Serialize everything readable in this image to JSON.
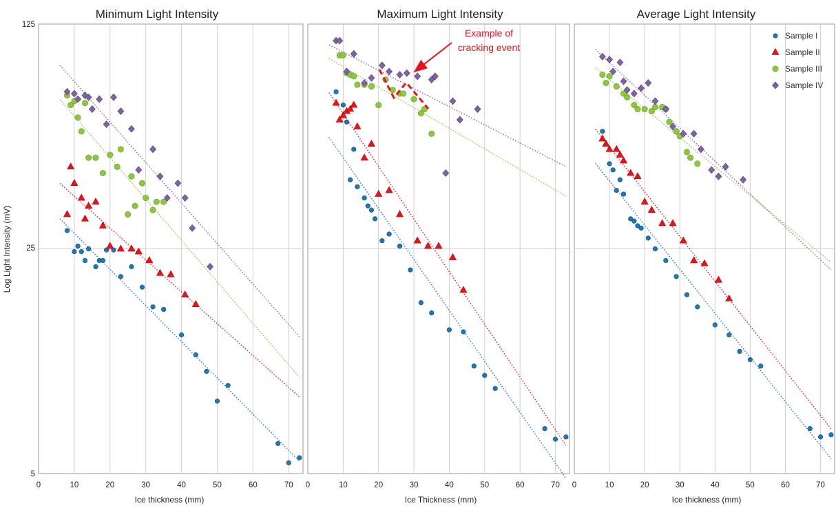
{
  "figure": {
    "ylabel": "Log Light Intensity (mV)",
    "y_tick_labels": [
      "125",
      "25",
      "5"
    ]
  },
  "legend": {
    "position": "top-right",
    "entries": [
      {
        "name": "Sample I",
        "color": "#1f77b4",
        "marker": "circle"
      },
      {
        "name": "Sample II",
        "color": "#e8141b",
        "marker": "triangle"
      },
      {
        "name": "Sample III",
        "color": "#8dc63f",
        "marker": "circle"
      },
      {
        "name": "Sample IV",
        "color": "#8064a2",
        "marker": "diamond"
      }
    ]
  },
  "annotation": {
    "line1": "Example of",
    "line2": "cracking event",
    "color": "#e8141b"
  },
  "chart_data": [
    {
      "type": "scatter",
      "title": "Minimum Light Intensity",
      "xlabel": "Ice thickness (mm)",
      "ylabel": "Log Light Intensity (mV)",
      "xlim": [
        0,
        74
      ],
      "x_ticks": [
        0,
        10,
        20,
        30,
        40,
        50,
        60,
        70
      ],
      "ylim": [
        5,
        125
      ],
      "y_scale": "log",
      "grid": true,
      "series": [
        {
          "name": "Sample I",
          "x": [
            8,
            10,
            11,
            12,
            13,
            14,
            16,
            17,
            18,
            19,
            21,
            23,
            26,
            29,
            32,
            35,
            40,
            44,
            47,
            53,
            50,
            67,
            70,
            73
          ],
          "y": [
            28.5,
            24.5,
            25.5,
            24.5,
            23,
            25,
            22,
            23,
            23,
            24.8,
            24.8,
            20.5,
            22,
            19,
            16.5,
            16.2,
            13.5,
            11.7,
            10.4,
            9.4,
            8.4,
            6.2,
            5.4,
            5.6
          ]
        },
        {
          "name": "Sample II",
          "x": [
            8,
            9,
            10,
            12,
            13,
            14,
            16,
            18,
            20,
            23,
            26,
            28,
            31,
            34,
            37,
            41,
            44
          ],
          "y": [
            32,
            45,
            40,
            36,
            31,
            34,
            35,
            29.5,
            25.5,
            25,
            25,
            24.5,
            23,
            21,
            20.8,
            18,
            16.8
          ]
        },
        {
          "name": "Sample III",
          "x": [
            8,
            9,
            10,
            11,
            12,
            13,
            14,
            16,
            18,
            20,
            22,
            23,
            25,
            26,
            27,
            29,
            30,
            32,
            33,
            35
          ],
          "y": [
            75,
            70,
            72,
            64,
            58,
            71,
            48,
            48,
            43,
            49,
            45,
            51,
            32,
            42,
            34,
            40,
            36,
            33,
            35,
            35
          ]
        },
        {
          "name": "Sample IV",
          "x": [
            8,
            10,
            11,
            13,
            14,
            15,
            17,
            19,
            21,
            23,
            26,
            28,
            32,
            34,
            36,
            39,
            41,
            43,
            48
          ],
          "y": [
            77,
            76,
            73,
            75,
            74,
            68,
            73,
            61,
            74,
            67,
            59,
            44,
            51,
            42,
            36,
            40,
            36,
            29,
            22
          ]
        }
      ]
    },
    {
      "type": "scatter",
      "title": "Maximum Light Intensity",
      "xlabel": "Ice Thickness (mm)",
      "xlim": [
        0,
        74
      ],
      "x_ticks": [
        0,
        10,
        20,
        30,
        40,
        50,
        60,
        70
      ],
      "ylim": [
        5,
        125
      ],
      "y_scale": "log",
      "grid": true,
      "series": [
        {
          "name": "Sample I",
          "x": [
            8,
            10,
            11,
            12,
            13,
            14,
            16,
            17,
            18,
            19,
            21,
            23,
            26,
            29,
            32,
            35,
            40,
            44,
            47,
            53,
            50,
            67,
            70,
            73
          ],
          "y": [
            77,
            70,
            62,
            41,
            51,
            39,
            36,
            34,
            33,
            31,
            26.5,
            27.8,
            25.5,
            21.5,
            17,
            15.8,
            14,
            13.8,
            10.8,
            9.2,
            10.1,
            6.9,
            6.4,
            6.5
          ]
        },
        {
          "name": "Sample II",
          "x": [
            8,
            9,
            10,
            11,
            12,
            13,
            14,
            16,
            18,
            20,
            23,
            26,
            31,
            34,
            37,
            41,
            44
          ],
          "y": [
            71,
            63,
            65,
            67,
            68,
            70,
            60,
            48,
            53,
            37,
            38,
            32,
            26.5,
            25.5,
            25.5,
            23.5,
            18.6
          ]
        },
        {
          "name": "Sample III",
          "x": [
            9,
            10,
            11,
            12,
            13,
            14,
            16,
            18,
            20,
            22,
            24,
            26,
            27,
            30,
            32,
            33,
            35
          ],
          "y": [
            100,
            100,
            88,
            87,
            86,
            81,
            81,
            80,
            70,
            84,
            78,
            76,
            76,
            73,
            66,
            68,
            57
          ]
        },
        {
          "name": "Sample IV",
          "x": [
            8,
            9,
            11,
            13,
            16,
            18,
            21,
            23,
            26,
            28,
            31,
            35,
            36,
            39,
            41,
            43,
            48
          ],
          "y": [
            111,
            111,
            89,
            101,
            82,
            85,
            93,
            89,
            87,
            88,
            86,
            84,
            86,
            43,
            72,
            63,
            68
          ]
        }
      ]
    },
    {
      "type": "scatter",
      "title": "Average Light Intensity",
      "xlabel": "Ice thickness (mm)",
      "xlim": [
        0,
        74
      ],
      "x_ticks": [
        0,
        10,
        20,
        30,
        40,
        50,
        60,
        70
      ],
      "ylim": [
        5,
        125
      ],
      "y_scale": "log",
      "grid": true,
      "series": [
        {
          "name": "Sample I",
          "x": [
            8,
            10,
            11,
            12,
            13,
            14,
            16,
            17,
            18,
            19,
            21,
            23,
            26,
            29,
            32,
            35,
            40,
            44,
            47,
            53,
            50,
            67,
            70,
            73
          ],
          "y": [
            58,
            46,
            44,
            38,
            41,
            37,
            31,
            30.5,
            29.5,
            29,
            27,
            25,
            23,
            20.5,
            18,
            16.5,
            14.5,
            13.5,
            12,
            10.8,
            11.3,
            6.9,
            6.5,
            6.6
          ]
        },
        {
          "name": "Sample II",
          "x": [
            8,
            9,
            10,
            12,
            13,
            14,
            16,
            18,
            20,
            22,
            25,
            28,
            31,
            34,
            37,
            41,
            44
          ],
          "y": [
            55,
            53,
            51,
            51,
            49,
            47,
            43,
            42,
            35,
            33,
            30,
            30,
            26.5,
            23,
            22.5,
            20,
            17.5
          ]
        },
        {
          "name": "Sample III",
          "x": [
            8,
            9,
            10,
            12,
            14,
            15,
            17,
            18,
            20,
            22,
            23,
            25,
            26,
            27,
            29,
            30,
            32,
            33,
            35
          ],
          "y": [
            87,
            82,
            86,
            80,
            76,
            74,
            70,
            68,
            68,
            67,
            69,
            69,
            68,
            62,
            58,
            56,
            50,
            48,
            46
          ]
        },
        {
          "name": "Sample IV",
          "x": [
            8,
            10,
            11,
            13,
            14,
            15,
            17,
            19,
            21,
            23,
            26,
            28,
            31,
            34,
            36,
            39,
            41,
            43,
            48
          ],
          "y": [
            99,
            97,
            89,
            95,
            83,
            78,
            76,
            79,
            82,
            72,
            68,
            60,
            57,
            57,
            51,
            44,
            42,
            45,
            41
          ]
        }
      ]
    }
  ]
}
